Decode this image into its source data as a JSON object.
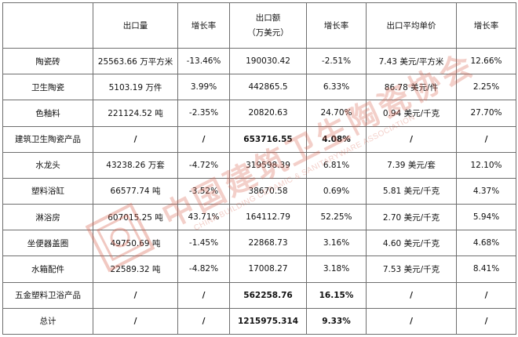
{
  "table": {
    "headers": [
      "",
      "出口量",
      "增长率",
      [
        "出口额",
        "（万美元）"
      ],
      "增长率",
      "出口平均单价",
      "增长率"
    ],
    "rows": [
      {
        "bold": false,
        "cells": [
          "陶瓷砖",
          "25563.66 万平方米",
          "-13.46%",
          "190030.42",
          "-2.51%",
          "7.43 美元/平方米",
          "12.66%"
        ]
      },
      {
        "bold": false,
        "cells": [
          "卫生陶瓷",
          "5103.19 万件",
          "3.99%",
          "442865.5",
          "6.33%",
          "86.78 美元/件",
          "2.25%"
        ]
      },
      {
        "bold": false,
        "cells": [
          "色釉料",
          "221124.52 吨",
          "-2.35%",
          "20820.63",
          "24.70%",
          "0.94 美元/千克",
          "27.70%"
        ]
      },
      {
        "bold": true,
        "cells": [
          "建筑卫生陶瓷产品",
          "/",
          "/",
          "653716.55",
          "4.08%",
          "/",
          "/"
        ]
      },
      {
        "bold": false,
        "cells": [
          "水龙头",
          "43238.26 万套",
          "-4.72%",
          "319598.39",
          "6.81%",
          "7.39 美元/套",
          "12.10%"
        ]
      },
      {
        "bold": false,
        "cells": [
          "塑料浴缸",
          "66577.74 吨",
          "-3.52%",
          "38670.58",
          "0.69%",
          "5.81 美元/千克",
          "4.37%"
        ]
      },
      {
        "bold": false,
        "cells": [
          "淋浴房",
          "607015.25 吨",
          "43.71%",
          "164112.79",
          "52.25%",
          "2.70 美元/千克",
          "5.94%"
        ]
      },
      {
        "bold": false,
        "cells": [
          "坐便器盖圈",
          "49750.69 吨",
          "-1.45%",
          "22868.73",
          "3.16%",
          "4.60 美元/千克",
          "4.68%"
        ]
      },
      {
        "bold": false,
        "cells": [
          "水箱配件",
          "22589.32 吨",
          "-4.82%",
          "17008.27",
          "3.18%",
          "7.53 美元/千克",
          "8.41%"
        ]
      },
      {
        "bold": true,
        "cells": [
          "五金塑料卫浴产品",
          "/",
          "/",
          "562258.76",
          "16.15%",
          "/",
          "/"
        ]
      },
      {
        "bold": true,
        "cells": [
          "总计",
          "/",
          "/",
          "1215975.314",
          "9.33%",
          "/",
          "/"
        ]
      }
    ]
  },
  "watermark": {
    "cn": "中国建筑卫生陶瓷协会",
    "en": "CHINA BUILDING CERAMIC & SANITARYWARE ASSOCIATION",
    "color": "#d6604c"
  }
}
